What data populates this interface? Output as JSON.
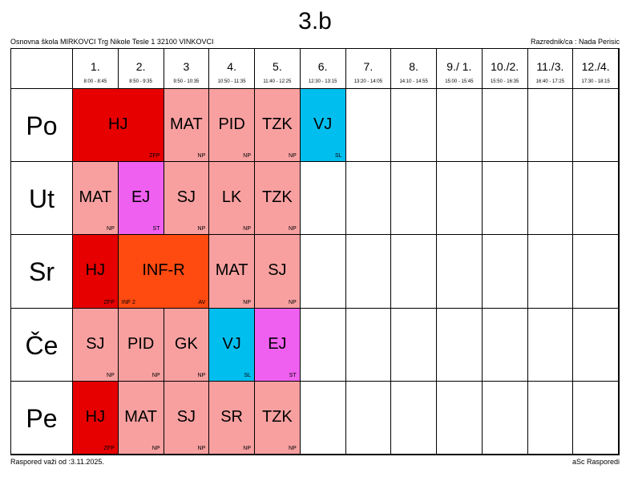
{
  "title": "3.b",
  "school": "Osnovna škola MIRKOVCI Trg Nikole Tesle 1 32100 VINKOVCI",
  "teacher": "Razrednik/ca : Nada Perisic",
  "periods": [
    {
      "label": "1.",
      "time": "8:00 - 8:45"
    },
    {
      "label": "2.",
      "time": "8:50 - 9:35"
    },
    {
      "label": "3",
      "time": "9:50 - 10:35"
    },
    {
      "label": "4.",
      "time": "10:50 - 11:35"
    },
    {
      "label": "5.",
      "time": "11:40 - 12:25"
    },
    {
      "label": "6.",
      "time": "12:30 - 13:15"
    },
    {
      "label": "7.",
      "time": "13:20 - 14:05"
    },
    {
      "label": "8.",
      "time": "14:10 - 14:55"
    },
    {
      "label": "9./ 1.",
      "time": "15:00 - 15:45"
    },
    {
      "label": "10./2.",
      "time": "15:50 - 16:35"
    },
    {
      "label": "11./3.",
      "time": "16:40 - 17:25"
    },
    {
      "label": "12./4.",
      "time": "17:30 - 18:15"
    }
  ],
  "days": [
    {
      "name": "Po",
      "lessons": [
        {
          "subject": "HJ",
          "room": "ZFP",
          "color": "#e60000",
          "span": 2
        },
        {
          "subject": "MAT",
          "room": "NP",
          "color": "#f8a0a0"
        },
        {
          "subject": "PID",
          "room": "NP",
          "color": "#f8a0a0"
        },
        {
          "subject": "TZK",
          "room": "NP",
          "color": "#f8a0a0"
        },
        {
          "subject": "VJ",
          "room": "SL",
          "color": "#00bfef"
        }
      ]
    },
    {
      "name": "Ut",
      "lessons": [
        {
          "subject": "MAT",
          "room": "NP",
          "color": "#f8a0a0"
        },
        {
          "subject": "EJ",
          "room": "ST",
          "color": "#f060f0"
        },
        {
          "subject": "SJ",
          "room": "NP",
          "color": "#f8a0a0"
        },
        {
          "subject": "LK",
          "room": "NP",
          "color": "#f8a0a0"
        },
        {
          "subject": "TZK",
          "room": "NP",
          "color": "#f8a0a0"
        }
      ]
    },
    {
      "name": "Sr",
      "lessons": [
        {
          "subject": "HJ",
          "room": "ZFP",
          "color": "#e60000"
        },
        {
          "subject": "INF-R",
          "group": "INF 2",
          "room": "AV",
          "color": "#ff4a10",
          "span": 2
        },
        {
          "subject": "MAT",
          "room": "NP",
          "color": "#f8a0a0"
        },
        {
          "subject": "SJ",
          "room": "NP",
          "color": "#f8a0a0"
        }
      ]
    },
    {
      "name": "Če",
      "lessons": [
        {
          "subject": "SJ",
          "room": "NP",
          "color": "#f8a0a0"
        },
        {
          "subject": "PID",
          "room": "NP",
          "color": "#f8a0a0"
        },
        {
          "subject": "GK",
          "room": "NP",
          "color": "#f8a0a0"
        },
        {
          "subject": "VJ",
          "room": "SL",
          "color": "#00bfef"
        },
        {
          "subject": "EJ",
          "room": "ST",
          "color": "#f060f0"
        }
      ]
    },
    {
      "name": "Pe",
      "lessons": [
        {
          "subject": "HJ",
          "room": "ZFP",
          "color": "#e60000"
        },
        {
          "subject": "MAT",
          "room": "NP",
          "color": "#f8a0a0"
        },
        {
          "subject": "SJ",
          "room": "NP",
          "color": "#f8a0a0"
        },
        {
          "subject": "SR",
          "room": "NP",
          "color": "#f8a0a0"
        },
        {
          "subject": "TZK",
          "room": "NP",
          "color": "#f8a0a0"
        }
      ]
    }
  ],
  "footer": {
    "left": "Raspored važi od :3.11.2025.",
    "right": "aSc Rasporedi"
  }
}
